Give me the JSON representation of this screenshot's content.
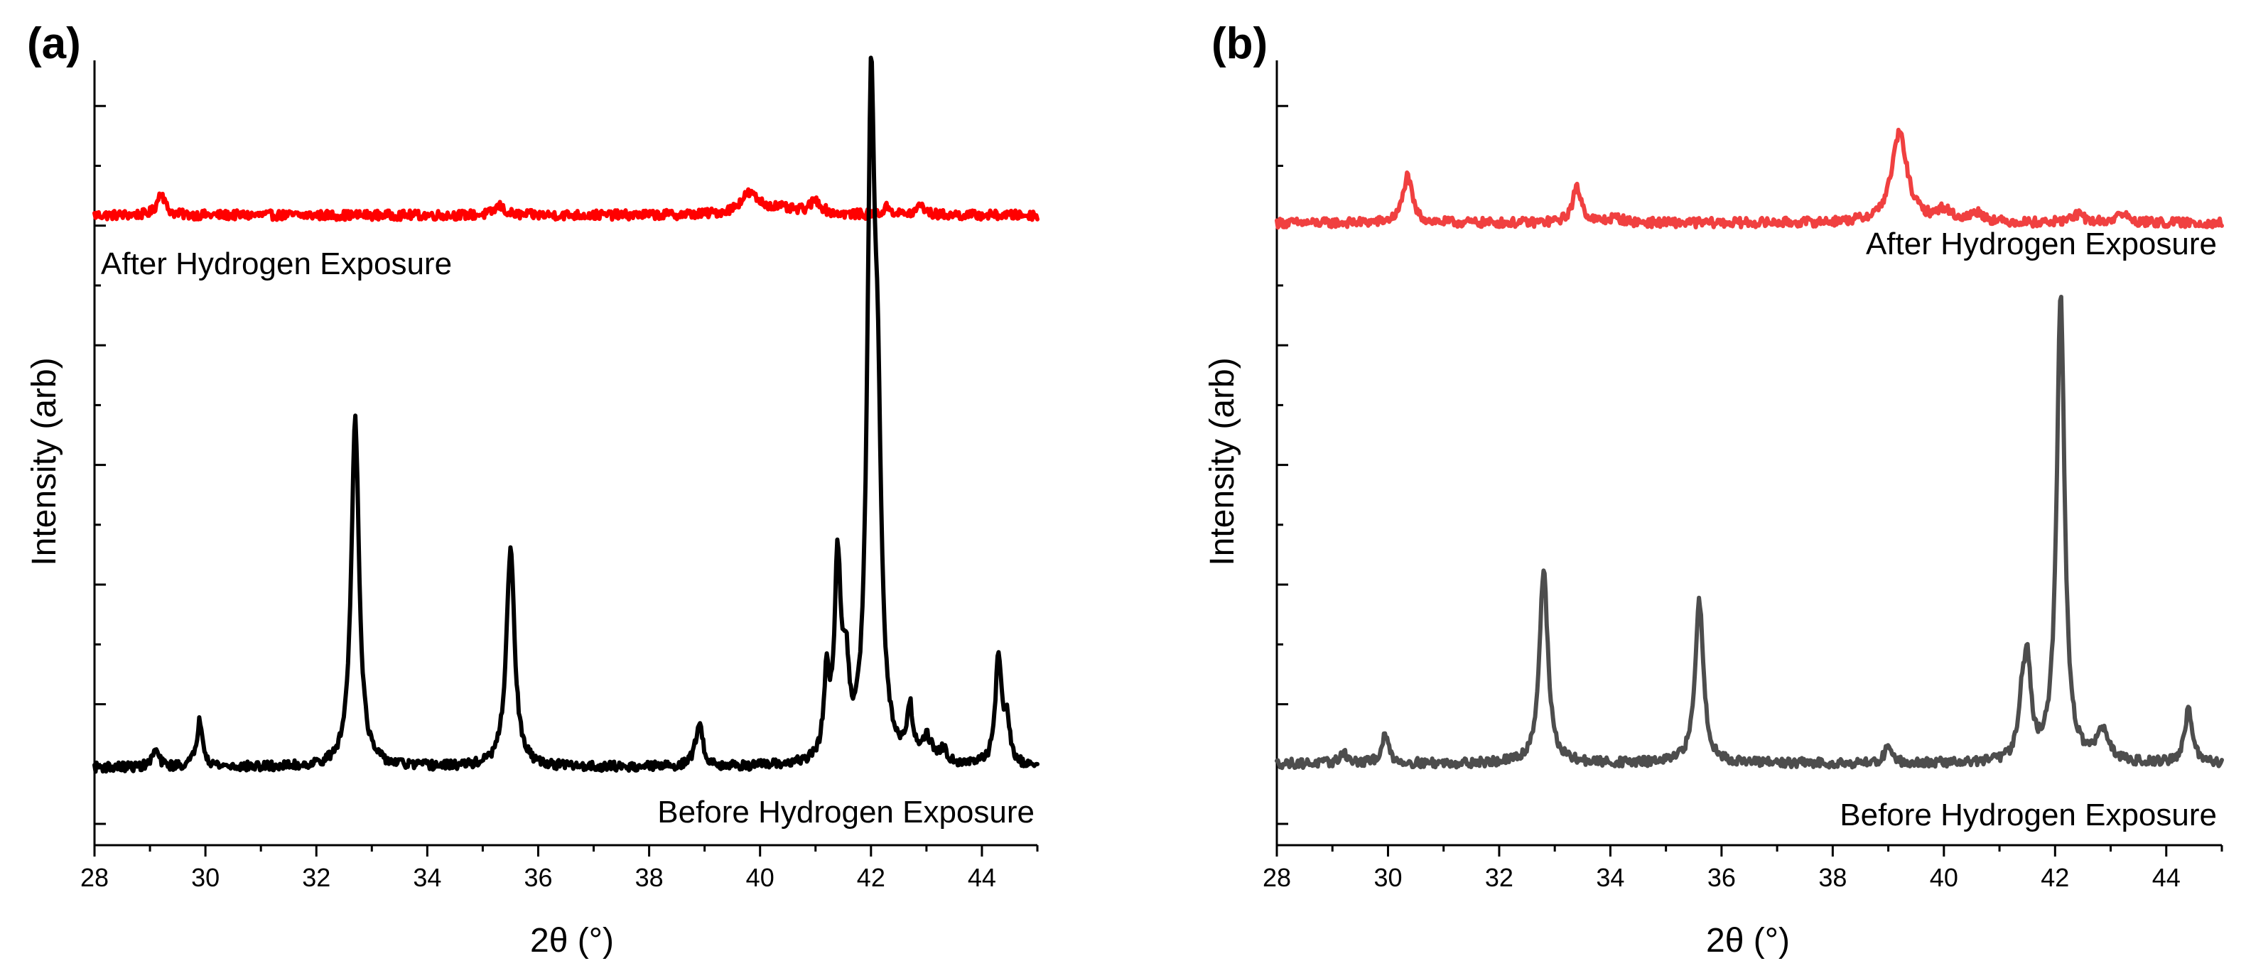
{
  "colors": {
    "black": "#000000",
    "dark_gray": "#4d4d4d",
    "red": "#ff0000",
    "light_red": "#f04040"
  },
  "chart_data": [
    {
      "id": "a",
      "type": "line",
      "panel_label": "(a)",
      "xlabel": "2θ (°)",
      "ylabel": "Intensity (arb)",
      "xlim": [
        28,
        45
      ],
      "ylim": [
        0,
        1
      ],
      "x_ticks": [
        28,
        30,
        32,
        34,
        36,
        38,
        40,
        42,
        44
      ],
      "x_tick_labels": [
        "28",
        "30",
        "32",
        "34",
        "36",
        "38",
        "40",
        "42",
        "44"
      ],
      "y_tick_labels_shown": false,
      "grid": false,
      "series": [
        {
          "name": "After Hydrogen Exposure",
          "label": "After Hydrogen Exposure",
          "label_position": "below-left",
          "color": "#ff0000",
          "baseline": 0.81,
          "peaks": [
            {
              "x": 29.2,
              "height": 0.03,
              "width": 0.08
            },
            {
              "x": 35.3,
              "height": 0.012,
              "width": 0.1
            },
            {
              "x": 39.8,
              "height": 0.025,
              "width": 0.2
            },
            {
              "x": 40.3,
              "height": 0.008,
              "width": 0.4
            },
            {
              "x": 41.0,
              "height": 0.017,
              "width": 0.12
            },
            {
              "x": 42.3,
              "height": 0.01,
              "width": 0.08
            },
            {
              "x": 42.9,
              "height": 0.013,
              "width": 0.08
            }
          ]
        },
        {
          "name": "Before Hydrogen Exposure",
          "label": "Before Hydrogen Exposure",
          "label_position": "below-right",
          "color": "#000000",
          "baseline": 0.1,
          "peaks": [
            {
              "x": 29.1,
              "height": 0.022,
              "width": 0.07
            },
            {
              "x": 29.9,
              "height": 0.06,
              "width": 0.07
            },
            {
              "x": 32.7,
              "height": 0.45,
              "width": 0.085
            },
            {
              "x": 35.5,
              "height": 0.28,
              "width": 0.09
            },
            {
              "x": 38.9,
              "height": 0.055,
              "width": 0.08
            },
            {
              "x": 41.2,
              "height": 0.1,
              "width": 0.06
            },
            {
              "x": 41.4,
              "height": 0.25,
              "width": 0.07
            },
            {
              "x": 41.55,
              "height": 0.1,
              "width": 0.06
            },
            {
              "x": 42.0,
              "height": 0.8,
              "width": 0.08
            },
            {
              "x": 42.12,
              "height": 0.35,
              "width": 0.08
            },
            {
              "x": 42.7,
              "height": 0.065,
              "width": 0.06
            },
            {
              "x": 43.0,
              "height": 0.03,
              "width": 0.12
            },
            {
              "x": 43.3,
              "height": 0.015,
              "width": 0.1
            },
            {
              "x": 44.3,
              "height": 0.14,
              "width": 0.07
            },
            {
              "x": 44.45,
              "height": 0.05,
              "width": 0.06
            }
          ]
        }
      ]
    },
    {
      "id": "b",
      "type": "line",
      "panel_label": "(b)",
      "xlabel": "2θ (°)",
      "ylabel": "Intensity (arb)",
      "xlim": [
        28,
        45
      ],
      "ylim": [
        0,
        1
      ],
      "x_ticks": [
        28,
        30,
        32,
        34,
        36,
        38,
        40,
        42,
        44
      ],
      "x_tick_labels": [
        "28",
        "30",
        "32",
        "34",
        "36",
        "38",
        "40",
        "42",
        "44"
      ],
      "y_tick_labels_shown": false,
      "grid": false,
      "series": [
        {
          "name": "After Hydrogen Exposure",
          "label": "After Hydrogen Exposure",
          "label_position": "below-right",
          "color": "#f04040",
          "baseline": 0.8,
          "peaks": [
            {
              "x": 30.35,
              "height": 0.06,
              "width": 0.1
            },
            {
              "x": 33.4,
              "height": 0.045,
              "width": 0.1
            },
            {
              "x": 34.1,
              "height": 0.006,
              "width": 0.15
            },
            {
              "x": 39.2,
              "height": 0.115,
              "width": 0.17
            },
            {
              "x": 40.0,
              "height": 0.015,
              "width": 0.15
            },
            {
              "x": 40.6,
              "height": 0.012,
              "width": 0.15
            },
            {
              "x": 42.4,
              "height": 0.01,
              "width": 0.15
            },
            {
              "x": 43.2,
              "height": 0.012,
              "width": 0.12
            }
          ]
        },
        {
          "name": "Before Hydrogen Exposure",
          "label": "Before Hydrogen Exposure",
          "label_position": "below-right",
          "color": "#4d4d4d",
          "baseline": 0.105,
          "peaks": [
            {
              "x": 29.2,
              "height": 0.015,
              "width": 0.07
            },
            {
              "x": 29.95,
              "height": 0.035,
              "width": 0.08
            },
            {
              "x": 32.8,
              "height": 0.25,
              "width": 0.09
            },
            {
              "x": 35.6,
              "height": 0.21,
              "width": 0.09
            },
            {
              "x": 39.0,
              "height": 0.025,
              "width": 0.07
            },
            {
              "x": 41.4,
              "height": 0.06,
              "width": 0.07
            },
            {
              "x": 41.5,
              "height": 0.12,
              "width": 0.08
            },
            {
              "x": 42.1,
              "height": 0.6,
              "width": 0.085
            },
            {
              "x": 42.85,
              "height": 0.04,
              "width": 0.12
            },
            {
              "x": 44.4,
              "height": 0.07,
              "width": 0.08
            }
          ]
        }
      ]
    }
  ]
}
